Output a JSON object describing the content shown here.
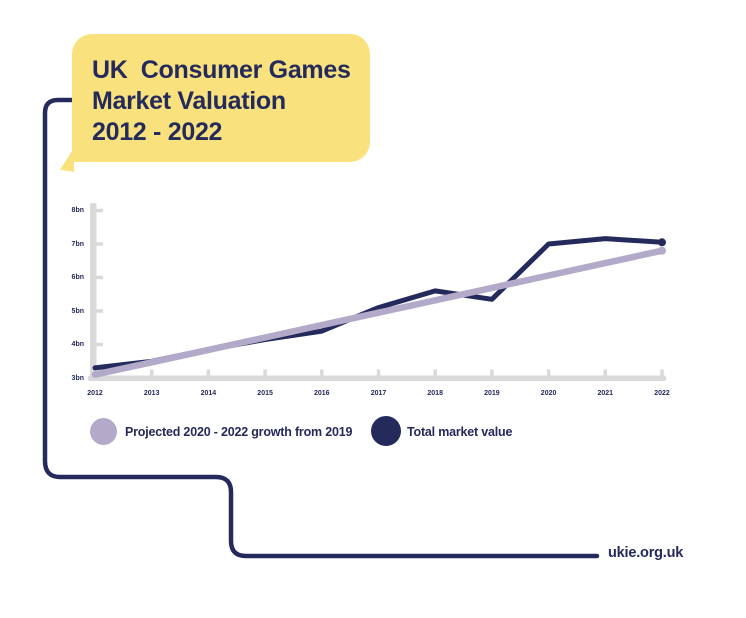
{
  "title_box": {
    "lines": [
      "UK  Consumer Games",
      "Market Valuation",
      "2012 - 2022"
    ]
  },
  "chart_data": {
    "type": "line",
    "title": "UK Consumer Games Market Valuation 2012 - 2022",
    "x": [
      2012,
      2013,
      2014,
      2015,
      2016,
      2017,
      2018,
      2019,
      2020,
      2021,
      2022
    ],
    "x_tick_labels": [
      "2012",
      "2013",
      "2014",
      "2015",
      "2016",
      "2017",
      "2018",
      "2019",
      "2020",
      "2021",
      "2022"
    ],
    "yticks": [
      3,
      4,
      5,
      6,
      7,
      8
    ],
    "y_tick_labels": [
      "3bn",
      "4bn",
      "5bn",
      "6bn",
      "7bn",
      "8bn"
    ],
    "ylim": [
      3,
      8
    ],
    "grid": false,
    "legend_position": "bottom",
    "series": [
      {
        "name": "Projected 2020 - 2022 growth from 2019",
        "color": "#B3A9C9",
        "values": [
          3.1,
          3.47,
          3.84,
          4.21,
          4.58,
          4.95,
          5.32,
          5.69,
          6.06,
          6.43,
          6.8
        ]
      },
      {
        "name": "Total market value",
        "color": "#242A5C",
        "values": [
          3.3,
          3.5,
          3.85,
          4.15,
          4.4,
          5.1,
          5.6,
          5.35,
          7.0,
          7.16,
          7.05
        ]
      }
    ]
  },
  "footer": {
    "website": "ukie.org.uk"
  },
  "colors": {
    "accent_yellow": "#F9E27D",
    "navy": "#242A5C",
    "lavender": "#B3A9C9",
    "axis_gray": "#D9D9D9",
    "background": "#FFFFFF"
  }
}
